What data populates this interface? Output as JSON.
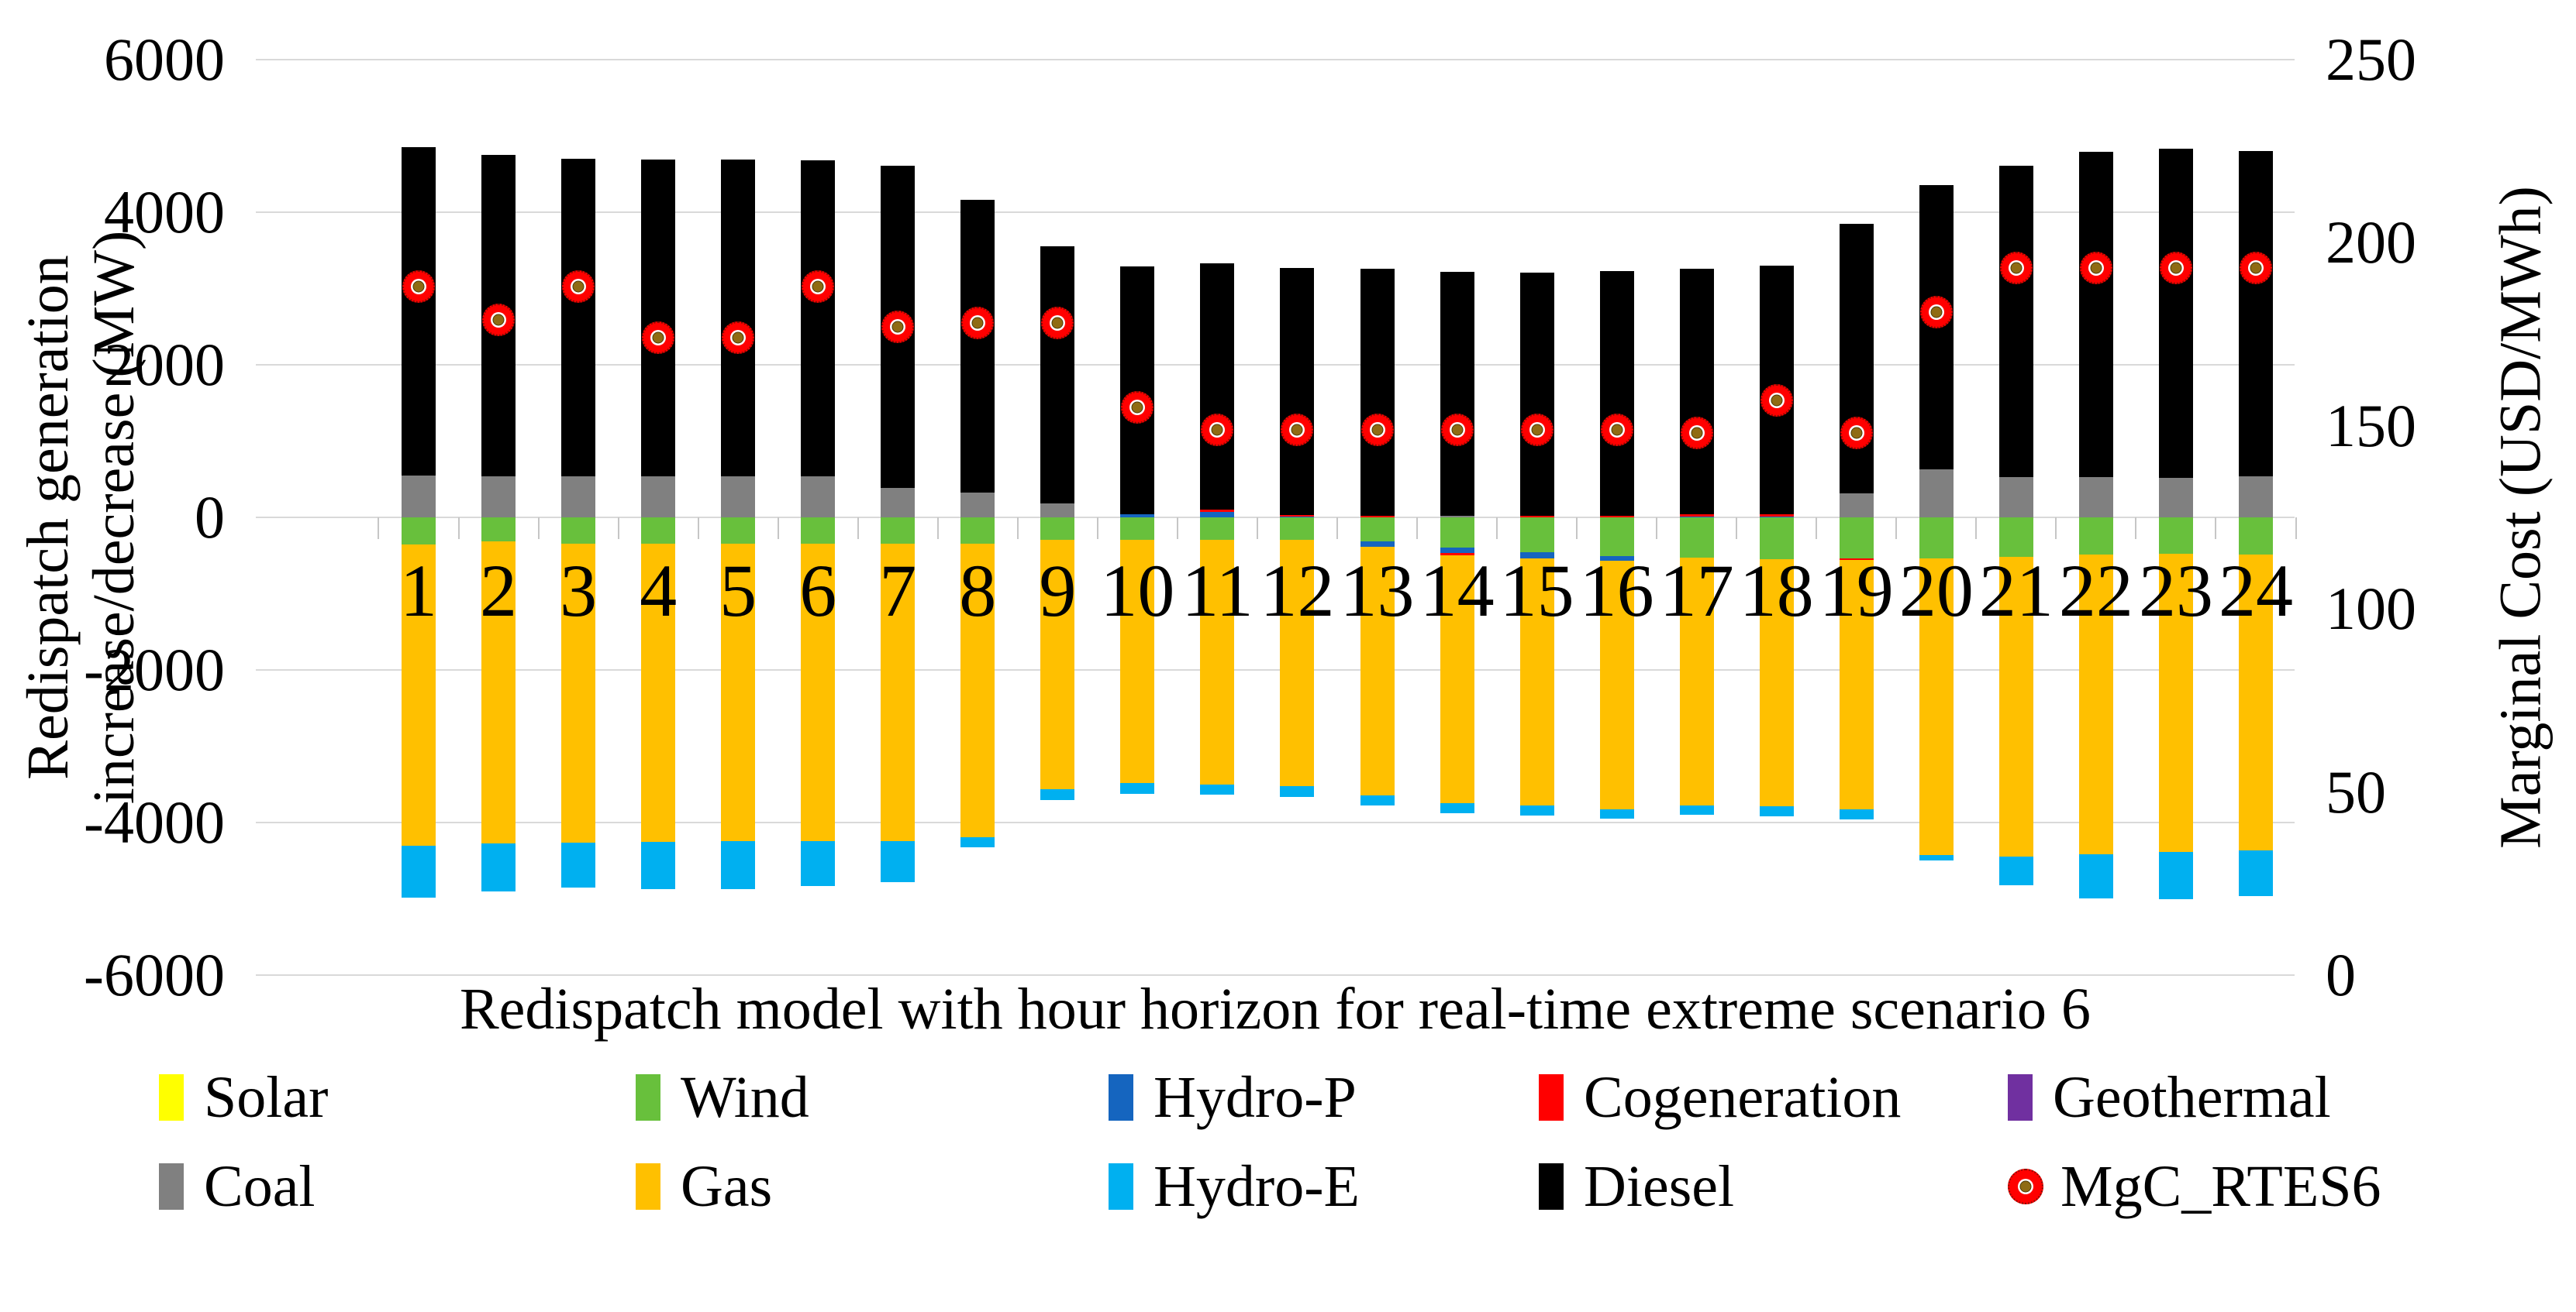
{
  "figure": {
    "y_axis_left_title_line1": "Redispatch generation",
    "y_axis_left_title_line2": "increase/decrease (MW)",
    "y_axis_right_title": "Marginal Cost (USD/MWh)",
    "x_axis_title": "Redispatch model with hour horizon for real-time extreme scenario 6"
  },
  "axes": {
    "left_ticks": [
      "6000",
      "4000",
      "2000",
      "0",
      "-2000",
      "-4000",
      "-6000"
    ],
    "right_ticks": [
      "250",
      "200",
      "150",
      "100",
      "50",
      "0"
    ]
  },
  "chart_data": {
    "type": "bar",
    "subtype": "stacked-bars-with-scatter-overlay",
    "title": "",
    "xlabel": "Redispatch model with hour horizon for real-time extreme scenario 6",
    "ylabel_left": "Redispatch generation increase/decrease (MW)",
    "ylabel_right": "Marginal Cost (USD/MWh)",
    "ylim_left": [
      -6000,
      6000
    ],
    "yticks_left": [
      6000,
      4000,
      2000,
      0,
      -2000,
      -4000,
      -6000
    ],
    "ylim_right": [
      0,
      250
    ],
    "yticks_right": [
      250,
      200,
      150,
      100,
      50,
      0
    ],
    "grid": "horizontal",
    "legend_position": "bottom",
    "categories": [
      1,
      2,
      3,
      4,
      5,
      6,
      7,
      8,
      9,
      10,
      11,
      12,
      13,
      14,
      15,
      16,
      17,
      18,
      19,
      20,
      21,
      22,
      23,
      24
    ],
    "series": [
      {
        "name": "Solar",
        "color": "#FFFF00",
        "values": [
          0,
          0,
          0,
          0,
          0,
          0,
          0,
          0,
          0,
          0,
          0,
          0,
          0,
          0,
          0,
          0,
          0,
          0,
          0,
          0,
          0,
          0,
          0,
          0
        ]
      },
      {
        "name": "Wind",
        "color": "#68C03C",
        "values": [
          -356,
          -310,
          -350,
          -350,
          -350,
          -350,
          -350,
          -350,
          -290,
          -290,
          -290,
          -290,
          -315,
          -395,
          -455,
          -505,
          -530,
          -545,
          -540,
          -540,
          -520,
          -490,
          -475,
          -490
        ]
      },
      {
        "name": "Hydro-P",
        "color": "#1565BF",
        "values": [
          0,
          0,
          0,
          0,
          0,
          0,
          0,
          0,
          0,
          45,
          75,
          12,
          -75,
          -75,
          -80,
          -65,
          15,
          15,
          0,
          0,
          0,
          0,
          0,
          0
        ]
      },
      {
        "name": "Cogeneration",
        "color": "#FF0000",
        "values": [
          0,
          0,
          0,
          0,
          0,
          0,
          0,
          0,
          0,
          0,
          25,
          15,
          25,
          -25,
          20,
          25,
          25,
          25,
          -20,
          0,
          0,
          0,
          0,
          0
        ]
      },
      {
        "name": "Geothermal",
        "color": "#7030A0",
        "values": [
          0,
          0,
          0,
          0,
          0,
          0,
          0,
          0,
          0,
          0,
          0,
          0,
          0,
          0,
          0,
          0,
          0,
          0,
          0,
          0,
          0,
          0,
          0,
          0
        ]
      },
      {
        "name": "Coal",
        "color": "#808080",
        "values": [
          545,
          540,
          540,
          540,
          540,
          540,
          385,
          320,
          185,
          0,
          0,
          0,
          0,
          20,
          0,
          0,
          0,
          0,
          310,
          630,
          530,
          530,
          520,
          540
        ]
      },
      {
        "name": "Gas",
        "color": "#FFC000",
        "values": [
          -3950,
          -3960,
          -3910,
          -3900,
          -3895,
          -3895,
          -3890,
          -3840,
          -3275,
          -3195,
          -3210,
          -3235,
          -3250,
          -3250,
          -3240,
          -3255,
          -3245,
          -3240,
          -3270,
          -3885,
          -3930,
          -3930,
          -3915,
          -3875
        ]
      },
      {
        "name": "Hydro-E",
        "color": "#00B0F0",
        "values": [
          -680,
          -630,
          -590,
          -620,
          -630,
          -585,
          -540,
          -135,
          -140,
          -140,
          -135,
          -135,
          -135,
          -135,
          -135,
          -125,
          -125,
          -130,
          -125,
          -70,
          -370,
          -580,
          -615,
          -600
        ]
      },
      {
        "name": "Diesel",
        "color": "#000000",
        "values": [
          4305,
          4215,
          4165,
          4155,
          4155,
          4140,
          4220,
          3845,
          3370,
          3240,
          3225,
          3240,
          3230,
          3195,
          3185,
          3205,
          3215,
          3260,
          3540,
          3730,
          4080,
          4260,
          4310,
          4260
        ]
      }
    ],
    "scatter_series": {
      "name": "MgC_RTES6",
      "axis": "right",
      "marker": "red-donut-with-olive-center",
      "values": [
        188,
        179,
        188,
        174,
        174,
        188,
        177,
        178,
        178,
        155,
        149,
        149,
        149,
        149,
        149,
        149,
        148,
        157,
        148,
        181,
        193,
        193,
        193,
        193
      ]
    }
  },
  "legend": {
    "rows": [
      [
        {
          "label": "Solar",
          "color": "#FFFF00",
          "kind": "rect"
        },
        {
          "label": "Wind",
          "color": "#68C03C",
          "kind": "rect"
        },
        {
          "label": "Hydro-P",
          "color": "#1565BF",
          "kind": "rect"
        },
        {
          "label": "Cogeneration",
          "color": "#FF0000",
          "kind": "rect"
        },
        {
          "label": "Geothermal",
          "color": "#7030A0",
          "kind": "rect"
        }
      ],
      [
        {
          "label": "Coal",
          "color": "#808080",
          "kind": "rect"
        },
        {
          "label": "Gas",
          "color": "#FFC000",
          "kind": "rect"
        },
        {
          "label": "Hydro-E",
          "color": "#00B0F0",
          "kind": "rect"
        },
        {
          "label": "Diesel",
          "color": "#000000",
          "kind": "rect"
        },
        {
          "label": "MgC_RTES6",
          "color": "#FF0000",
          "kind": "marker"
        }
      ]
    ]
  },
  "colors": {
    "gridline": "#D9D9D9",
    "category_tick": "#C6C6C6",
    "marker_ring": "#FF0000",
    "marker_center": "#8F6B13",
    "background": "#FFFFFF"
  }
}
